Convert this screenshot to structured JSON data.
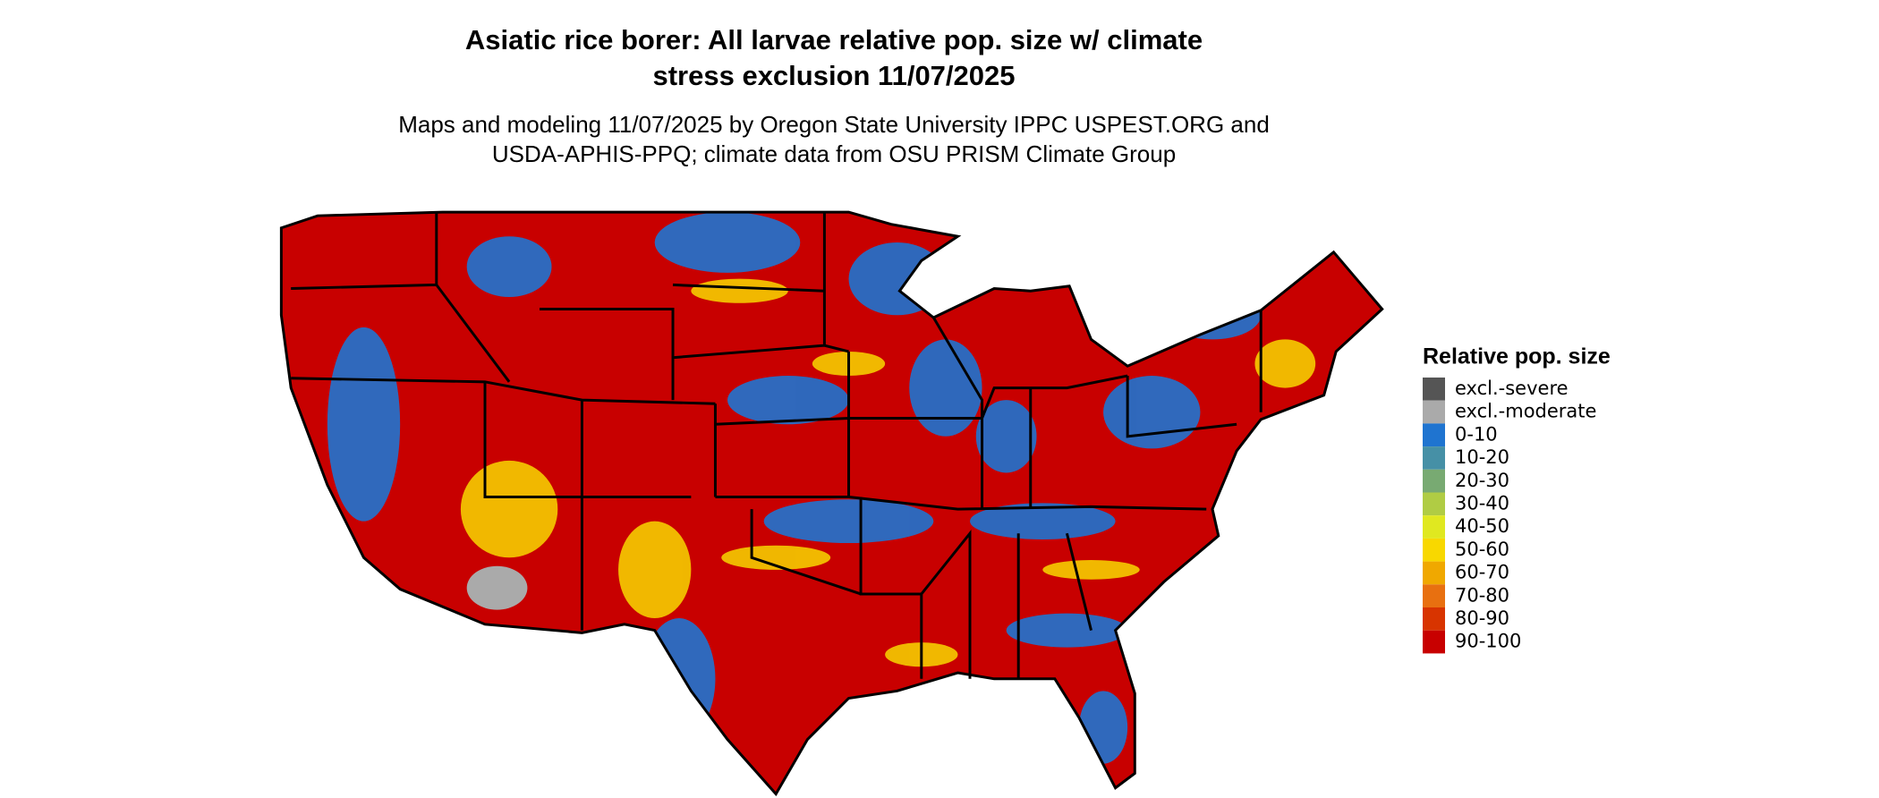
{
  "header": {
    "title_lines": [
      "Asiatic rice borer: All larvae relative pop. size w/ climate",
      "stress exclusion 11/07/2025"
    ],
    "subtitle_lines": [
      "Maps and modeling 11/07/2025 by Oregon State University IPPC USPEST.ORG and",
      "USDA-APHIS-PPQ; climate data from OSU PRISM Climate Group"
    ]
  },
  "legend": {
    "title": "Relative pop. size",
    "items": [
      {
        "label": "excl.-severe",
        "color": "#555555"
      },
      {
        "label": "excl.-moderate",
        "color": "#aaaaaa"
      },
      {
        "label": "0-10",
        "color": "#1f74d0"
      },
      {
        "label": "10-20",
        "color": "#4690a6"
      },
      {
        "label": "20-30",
        "color": "#78aa72"
      },
      {
        "label": "30-40",
        "color": "#b0cc44"
      },
      {
        "label": "40-50",
        "color": "#e0e820"
      },
      {
        "label": "50-60",
        "color": "#f8d800"
      },
      {
        "label": "60-70",
        "color": "#f0a800"
      },
      {
        "label": "70-80",
        "color": "#e87010"
      },
      {
        "label": "80-90",
        "color": "#d83400"
      },
      {
        "label": "90-100",
        "color": "#c80000"
      }
    ]
  }
}
